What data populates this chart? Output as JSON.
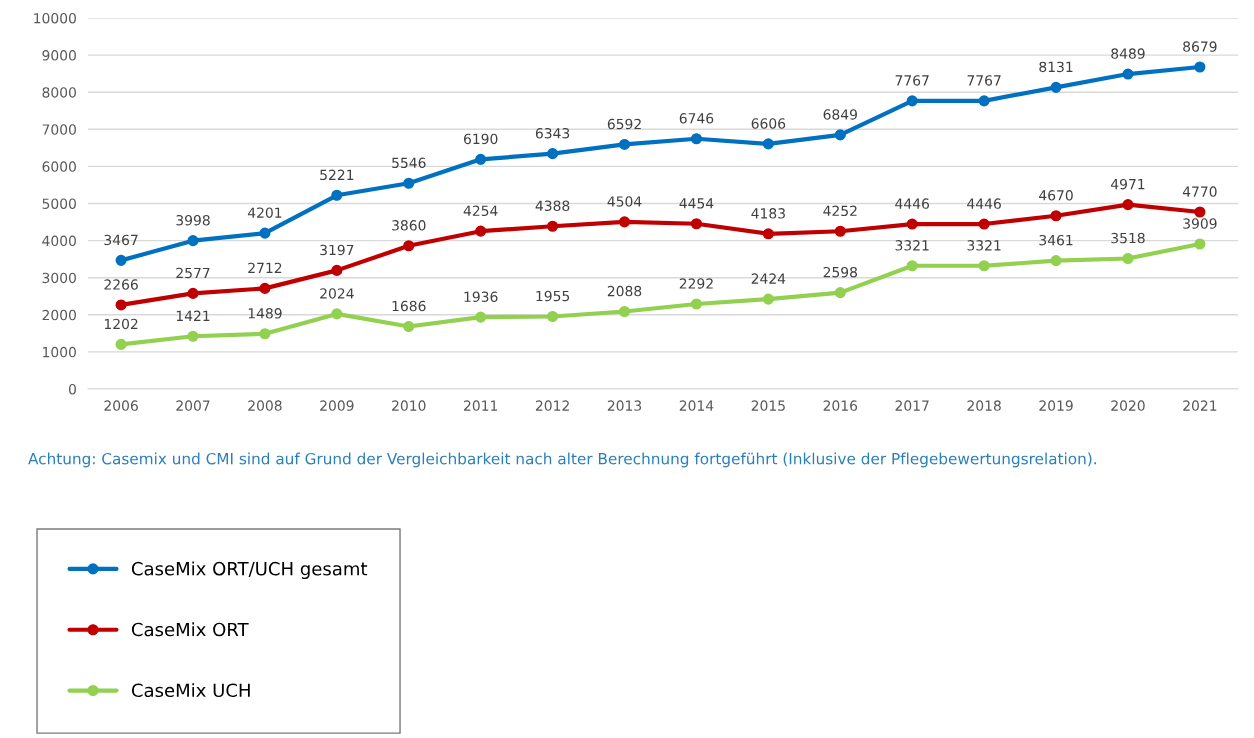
{
  "chart_data": {
    "type": "line",
    "categories": [
      "2006",
      "2007",
      "2008",
      "2009",
      "2010",
      "2011",
      "2012",
      "2013",
      "2014",
      "2015",
      "2016",
      "2017",
      "2018",
      "2019",
      "2020",
      "2021"
    ],
    "series": [
      {
        "name": "CaseMix ORT/UCH gesamt",
        "color": "#0070c0",
        "values": [
          3467,
          3998,
          4201,
          5221,
          5546,
          6190,
          6343,
          6592,
          6746,
          6606,
          6849,
          7767,
          7767,
          8131,
          8489,
          8679
        ]
      },
      {
        "name": "CaseMix ORT",
        "color": "#c00000",
        "values": [
          2266,
          2577,
          2712,
          3197,
          3860,
          4254,
          4388,
          4504,
          4454,
          4183,
          4252,
          4446,
          4446,
          4670,
          4971,
          4770
        ]
      },
      {
        "name": "CaseMix UCH",
        "color": "#92d050",
        "values": [
          1202,
          1421,
          1489,
          2024,
          1686,
          1936,
          1955,
          2088,
          2292,
          2424,
          2598,
          3321,
          3321,
          3461,
          3518,
          3909
        ]
      }
    ],
    "ylim": [
      0,
      10000
    ],
    "yticks": [
      0,
      1000,
      2000,
      3000,
      4000,
      5000,
      6000,
      7000,
      8000,
      9000,
      10000
    ],
    "grid": "y",
    "marker": "circle",
    "line_style": "solid",
    "data_labels": true,
    "legend": "bottom left",
    "annotations": [
      "Achtung: Casemix und CMI sind auf Grund der Vergleichbarkeit nach alter Berechnung fortgeführt (Inklusive der Pflegebewertungsrelation)."
    ]
  }
}
